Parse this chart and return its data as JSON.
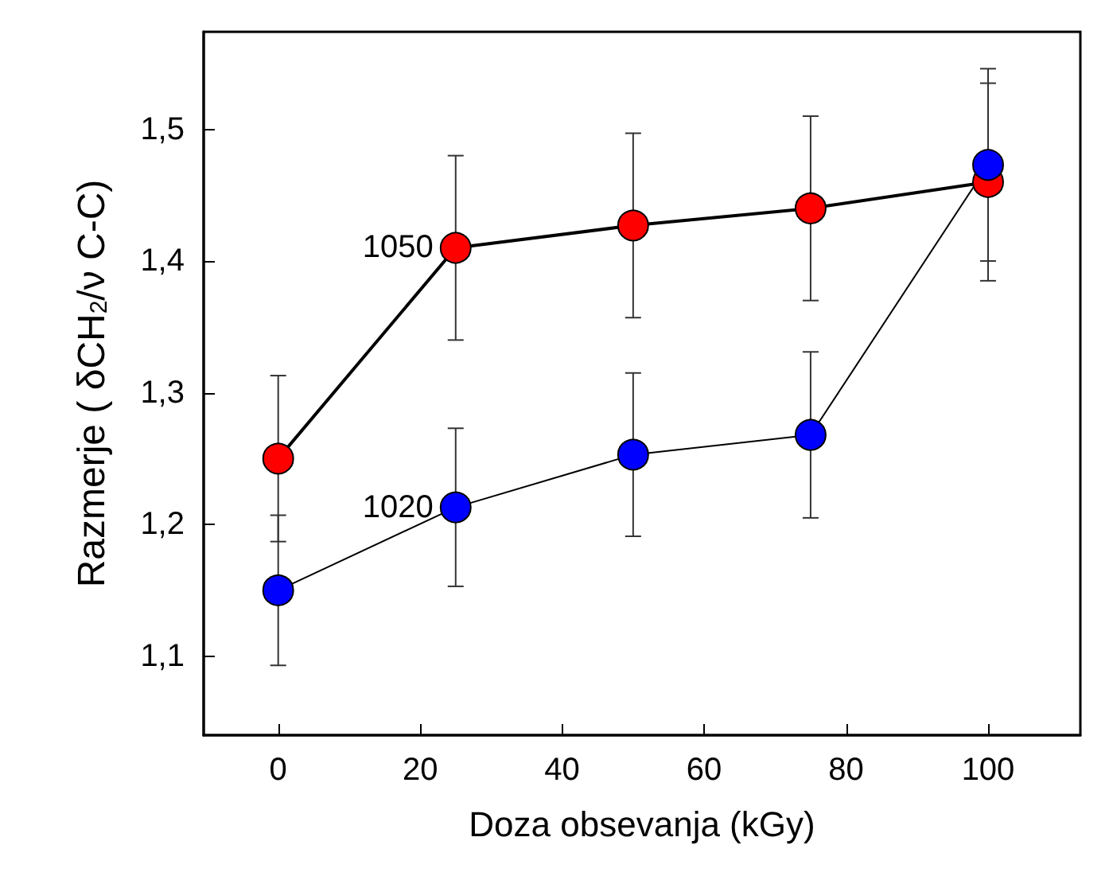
{
  "chart_data": {
    "type": "line",
    "xlabel": "Doza obsevanja (kGy)",
    "ylabel": "Razmerje ( δCH$_{2}$/ν C-C)",
    "x": [
      0,
      25,
      50,
      75,
      100
    ],
    "series": [
      {
        "color": "#ff0000",
        "values": [
          1.25,
          1.41,
          1.427,
          1.44,
          1.46
        ],
        "errors": [
          0.063,
          0.07,
          0.07,
          0.07,
          0.075
        ]
      },
      {
        "color": "#0000ff",
        "values": [
          1.15,
          1.213,
          1.253,
          1.268,
          1.473
        ],
        "errors": [
          0.057,
          0.06,
          0.062,
          0.063,
          0.073
        ]
      }
    ],
    "annotations": [
      {
        "text": "1050",
        "x": 25,
        "y": 1.41
      },
      {
        "text": "1020",
        "x": 25,
        "y": 1.213
      }
    ],
    "xlim": [
      -10.5,
      113
    ],
    "ylim": [
      1.04,
      1.574
    ],
    "xticks": [
      0,
      20,
      40,
      60,
      80,
      100
    ],
    "yticks": [
      {
        "value": 1.1,
        "label": "1,1"
      },
      {
        "value": 1.2,
        "label": "1,2"
      },
      {
        "value": 1.3,
        "label": "1,3"
      },
      {
        "value": 1.4,
        "label": "1,4"
      },
      {
        "value": 1.5,
        "label": "1,5"
      }
    ],
    "marker": "circle",
    "line_style": "solid"
  }
}
